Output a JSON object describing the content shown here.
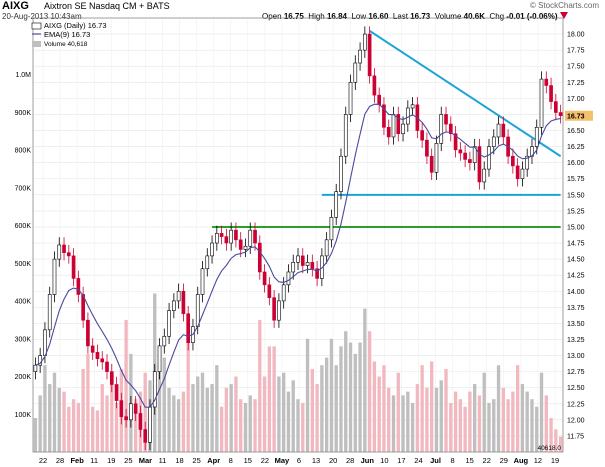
{
  "header": {
    "symbol": "AIXG",
    "company": "Aixtron SE  Nasdaq CM + BATS",
    "timestamp": "20-Aug-2013 10:43am",
    "brand": "© StockCharts.com",
    "ohlc": {
      "open_label": "Open",
      "open": "16.75",
      "high_label": "High",
      "high": "16.84",
      "low_label": "Low",
      "low": "16.60",
      "last_label": "Last",
      "last": "16.73",
      "volume_label": "Volume",
      "volume": "40.6K",
      "chg_label": "Chg",
      "chg": "-0.01 (-0.06%)",
      "chg_icon": "down-triangle-icon"
    }
  },
  "legend": {
    "price": "AIXG (Daily) 16.73",
    "ema": "EMA(9) 16.73",
    "volume": "Volume 40,618"
  },
  "last_price_tag": "16.73",
  "last_volume_tag": "40618.0",
  "colors": {
    "up": "#000000",
    "down": "#cc0033",
    "ema": "#4a4a9e",
    "trendline": "#1ba5d6",
    "support": "#1ba5d6",
    "resistance": "#2aa02a",
    "vol_up": "#bfbfbf",
    "vol_down": "#f2b8c0"
  },
  "chart_data": {
    "type": "candlestick",
    "x_axis": {
      "tick_labels": [
        "22",
        "28",
        "Feb",
        "11",
        "19",
        "25",
        "Mar",
        "11",
        "18",
        "25",
        "Apr",
        "8",
        "15",
        "22",
        "May",
        "6",
        "13",
        "20",
        "28",
        "Jun",
        "10",
        "17",
        "24",
        "Jul",
        "8",
        "15",
        "22",
        "29",
        "Aug",
        "12",
        "19"
      ],
      "month_labels": [
        "Feb",
        "Mar",
        "Apr",
        "May",
        "Jun",
        "Jul",
        "Aug"
      ]
    },
    "y_axis": {
      "side": "right",
      "range": [
        11.5,
        18.25
      ],
      "ticks": [
        11.75,
        12.0,
        12.25,
        12.5,
        12.75,
        13.0,
        13.25,
        13.5,
        13.75,
        14.0,
        14.25,
        14.5,
        14.75,
        15.0,
        15.25,
        15.5,
        15.75,
        16.0,
        16.25,
        16.5,
        16.75,
        17.0,
        17.25,
        17.5,
        17.75,
        18.0
      ],
      "tick_labels": [
        "11.75",
        "12.00",
        "12.25",
        "12.50",
        "12.75",
        "13.00",
        "13.25",
        "13.50",
        "13.75",
        "14.00",
        "14.25",
        "14.50",
        "14.75",
        "15.00",
        "15.25",
        "15.50",
        "15.75",
        "16.00",
        "16.25",
        "16.50",
        "16.75",
        "17.00",
        "17.25",
        "17.50",
        "17.75",
        "18.00"
      ]
    },
    "volume_axis": {
      "side": "left",
      "range": [
        0,
        1150000
      ],
      "ticks": [
        100000,
        200000,
        300000,
        400000,
        500000,
        600000,
        700000,
        800000,
        900000,
        1000000
      ],
      "tick_labels": [
        "100K",
        "200K",
        "300K",
        "400K",
        "500K",
        "600K",
        "700K",
        "800K",
        "900K",
        "1.0M"
      ]
    },
    "grid": true,
    "close": [
      12.85,
      13.0,
      13.4,
      13.95,
      14.5,
      14.72,
      14.6,
      14.55,
      14.2,
      13.95,
      13.55,
      13.15,
      13.05,
      12.95,
      12.9,
      12.75,
      12.55,
      12.3,
      12.05,
      12.0,
      12.25,
      12.1,
      11.85,
      11.65,
      12.2,
      12.75,
      13.15,
      13.3,
      13.7,
      13.85,
      14.0,
      13.65,
      13.2,
      13.45,
      13.95,
      14.35,
      14.55,
      14.75,
      14.9,
      14.85,
      14.75,
      14.95,
      14.8,
      14.65,
      14.7,
      14.95,
      14.75,
      14.3,
      14.1,
      13.9,
      13.55,
      13.85,
      14.1,
      14.3,
      14.45,
      14.55,
      14.4,
      14.45,
      14.35,
      14.2,
      14.55,
      14.8,
      15.15,
      15.55,
      16.1,
      16.75,
      17.25,
      17.55,
      17.75,
      18.0,
      17.35,
      17.05,
      16.9,
      16.55,
      16.4,
      16.75,
      16.45,
      16.6,
      16.85,
      16.9,
      16.5,
      16.35,
      16.1,
      15.85,
      16.3,
      16.75,
      16.6,
      16.45,
      16.2,
      16.15,
      16.05,
      16.0,
      16.25,
      15.7,
      15.9,
      16.25,
      16.4,
      16.6,
      16.4,
      16.1,
      15.95,
      15.75,
      15.9,
      16.1,
      16.25,
      16.55,
      17.3,
      17.2,
      16.95,
      16.78,
      16.73
    ],
    "volume": [
      90000,
      150000,
      230000,
      180000,
      210000,
      170000,
      160000,
      120000,
      140000,
      130000,
      220000,
      260000,
      120000,
      110000,
      180000,
      150000,
      190000,
      130000,
      220000,
      350000,
      260000,
      140000,
      160000,
      210000,
      190000,
      420000,
      230000,
      250000,
      170000,
      150000,
      140000,
      160000,
      330000,
      180000,
      200000,
      210000,
      170000,
      180000,
      230000,
      120000,
      170000,
      180000,
      200000,
      140000,
      130000,
      150000,
      140000,
      350000,
      200000,
      280000,
      280000,
      200000,
      210000,
      160000,
      190000,
      140000,
      130000,
      300000,
      220000,
      180000,
      230000,
      250000,
      300000,
      230000,
      280000,
      320000,
      290000,
      260000,
      290000,
      380000,
      320000,
      240000,
      200000,
      230000,
      170000,
      150000,
      210000,
      150000,
      160000,
      130000,
      180000,
      230000,
      170000,
      240000,
      170000,
      190000,
      220000,
      130000,
      160000,
      140000,
      120000,
      160000,
      180000,
      150000,
      210000,
      130000,
      140000,
      230000,
      170000,
      140000,
      160000,
      230000,
      180000,
      160000,
      140000,
      120000,
      210000,
      150000,
      90000,
      60000,
      40618
    ],
    "ema9_label": "EMA(9)",
    "annotations": [
      {
        "type": "trendline",
        "color": "trendline",
        "from": {
          "bar": 70,
          "price": 18.05
        },
        "to": {
          "bar": 110,
          "price": 16.1
        }
      },
      {
        "type": "hline",
        "color": "support",
        "price": 15.5,
        "from_bar": 60,
        "to_bar": 110
      },
      {
        "type": "hline",
        "color": "resistance",
        "price": 15.0,
        "from_bar": 37,
        "to_bar": 110
      }
    ]
  }
}
